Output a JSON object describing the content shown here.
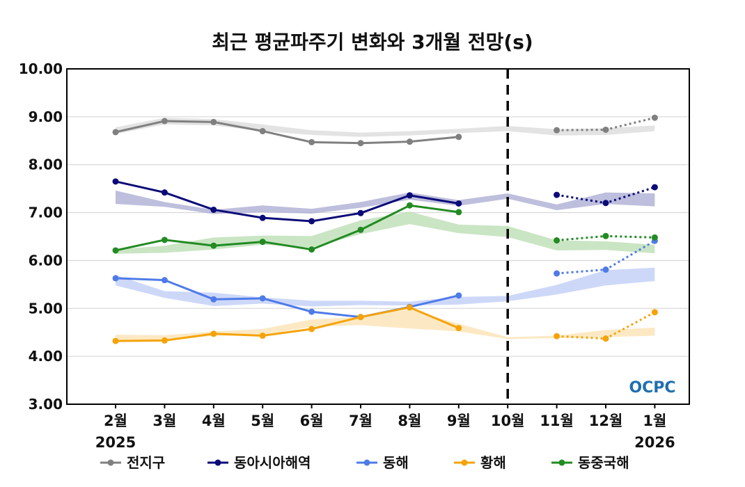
{
  "chart_data": {
    "type": "line",
    "title": "최근 평균파주기 변화와 3개월 전망(s)",
    "categories": [
      "2월",
      "3월",
      "4월",
      "5월",
      "6월",
      "7월",
      "8월",
      "9월",
      "10월",
      "11월",
      "12월",
      "1월"
    ],
    "year_labels": [
      {
        "category": "2월",
        "text": "2025"
      },
      {
        "category": "1월",
        "text": "2026"
      }
    ],
    "ylim": [
      3.0,
      10.0
    ],
    "yticks": [
      "3.00",
      "4.00",
      "5.00",
      "6.00",
      "7.00",
      "8.00",
      "9.00",
      "10.00"
    ],
    "grid": true,
    "divider_after_category": "10월",
    "legend_position": "bottom",
    "logo_text": "OCPC",
    "series": [
      {
        "name": "전지구",
        "color": "#808080",
        "band_color": "#d9d9d9",
        "observed": [
          8.68,
          8.91,
          8.89,
          8.7,
          8.47,
          8.45,
          8.48,
          8.58
        ],
        "forecast": [
          8.72,
          8.73,
          8.98
        ],
        "band_low": [
          8.64,
          8.84,
          8.82,
          8.7,
          8.62,
          8.58,
          8.61,
          8.66,
          8.7,
          8.61,
          8.62,
          8.7
        ],
        "band_high": [
          8.78,
          8.98,
          8.95,
          8.84,
          8.72,
          8.67,
          8.7,
          8.75,
          8.81,
          8.74,
          8.76,
          8.82
        ]
      },
      {
        "name": "동아시아해역",
        "color": "#0a0a78",
        "band_color": "#a8a8d2",
        "observed": [
          7.65,
          7.42,
          7.06,
          6.89,
          6.82,
          6.99,
          7.36,
          7.19
        ],
        "forecast": [
          7.37,
          7.2,
          7.53
        ],
        "band_low": [
          7.18,
          7.12,
          6.97,
          7.01,
          6.98,
          7.1,
          7.27,
          7.14,
          7.29,
          7.05,
          7.18,
          7.13
        ],
        "band_high": [
          7.46,
          7.22,
          7.06,
          7.15,
          7.08,
          7.22,
          7.42,
          7.26,
          7.4,
          7.17,
          7.42,
          7.4
        ]
      },
      {
        "name": "동해",
        "color": "#4f7be8",
        "band_color": "#bccbf7",
        "observed": [
          5.63,
          5.59,
          5.19,
          5.21,
          4.93,
          4.82,
          5.03,
          5.27
        ],
        "forecast": [
          5.73,
          5.81,
          6.41
        ],
        "band_low": [
          5.48,
          5.22,
          5.05,
          5.1,
          5.04,
          5.07,
          5.06,
          5.08,
          5.15,
          5.29,
          5.48,
          5.57
        ],
        "band_high": [
          5.7,
          5.36,
          5.33,
          5.23,
          5.16,
          5.16,
          5.14,
          5.24,
          5.26,
          5.49,
          5.8,
          5.85
        ]
      },
      {
        "name": "황해",
        "color": "#f5a30a",
        "band_color": "#fbe1b0",
        "observed": [
          4.32,
          4.33,
          4.47,
          4.43,
          4.57,
          4.82,
          5.02,
          4.59
        ],
        "forecast": [
          4.42,
          4.37,
          4.92
        ],
        "band_low": [
          4.3,
          4.32,
          4.43,
          4.44,
          4.62,
          4.65,
          4.58,
          4.52,
          4.36,
          4.38,
          4.4,
          4.43
        ],
        "band_high": [
          4.45,
          4.44,
          4.52,
          4.57,
          4.77,
          4.82,
          4.98,
          4.68,
          4.4,
          4.43,
          4.55,
          4.6
        ]
      },
      {
        "name": "동중국해",
        "color": "#228b22",
        "band_color": "#b8dcb0",
        "observed": [
          6.21,
          6.43,
          6.31,
          6.39,
          6.23,
          6.64,
          7.15,
          7.01
        ],
        "forecast": [
          6.42,
          6.51,
          6.48
        ],
        "band_low": [
          6.14,
          6.16,
          6.23,
          6.33,
          6.27,
          6.55,
          6.76,
          6.57,
          6.49,
          6.21,
          6.22,
          6.15
        ],
        "band_high": [
          6.23,
          6.31,
          6.48,
          6.52,
          6.51,
          6.84,
          7.02,
          6.75,
          6.72,
          6.42,
          6.4,
          6.33
        ]
      }
    ]
  }
}
